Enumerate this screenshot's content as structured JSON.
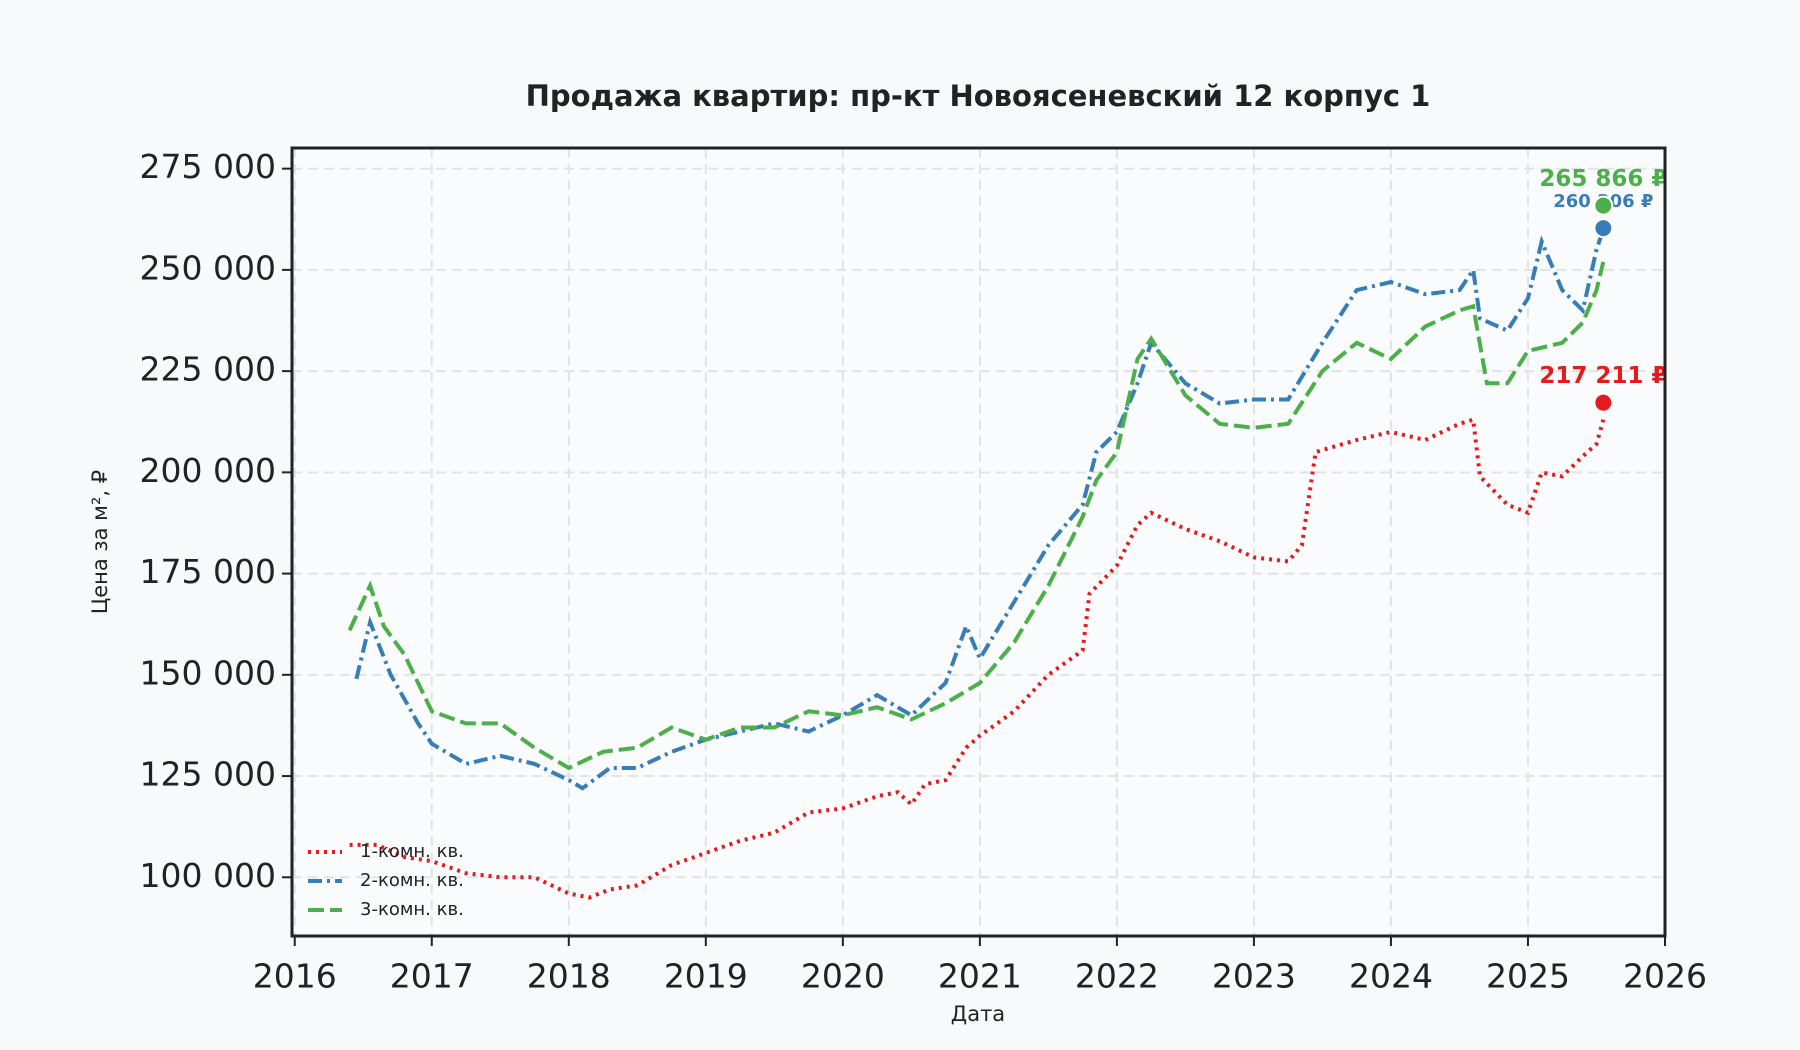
{
  "chart_data": {
    "type": "line",
    "title": "Продажа квартир: пр-кт Новоясеневский 12 корпус 1",
    "x_label": "Дата",
    "y_label": "Цена за м², ₽",
    "xlim": [
      2015.98,
      2026
    ],
    "xticks": [
      2016,
      2017,
      2018,
      2019,
      2020,
      2021,
      2022,
      2023,
      2024,
      2025,
      2026
    ],
    "ylim": [
      85500,
      280100
    ],
    "yticks": [
      {
        "value": 100000,
        "label": "100 000"
      },
      {
        "value": 125000,
        "label": "125 000"
      },
      {
        "value": 150000,
        "label": "150 000"
      },
      {
        "value": 175000,
        "label": "175 000"
      },
      {
        "value": 200000,
        "label": "200 000"
      },
      {
        "value": 225000,
        "label": "225 000"
      },
      {
        "value": 250000,
        "label": "250 000"
      },
      {
        "value": 275000,
        "label": "275 000"
      }
    ],
    "grid": true,
    "legend_position": "lower left",
    "series": [
      {
        "name": "1-комн. кв.",
        "color": "#e41a1c",
        "line_style": "dotted",
        "x": [
          2016.4,
          2016.6,
          2016.8,
          2017.0,
          2017.25,
          2017.5,
          2017.75,
          2018.0,
          2018.15,
          2018.3,
          2018.5,
          2018.75,
          2019.0,
          2019.25,
          2019.5,
          2019.75,
          2020.0,
          2020.25,
          2020.4,
          2020.5,
          2020.6,
          2020.75,
          2020.9,
          2021.0,
          2021.25,
          2021.5,
          2021.75,
          2021.8,
          2022.0,
          2022.15,
          2022.25,
          2022.5,
          2022.75,
          2023.0,
          2023.25,
          2023.35,
          2023.45,
          2023.75,
          2024.0,
          2024.25,
          2024.5,
          2024.6,
          2024.65,
          2024.85,
          2025.0,
          2025.1,
          2025.25,
          2025.4,
          2025.5,
          2025.55
        ],
        "values": [
          108000,
          108000,
          105000,
          104000,
          101000,
          100000,
          100000,
          96000,
          95000,
          97000,
          98000,
          103000,
          106000,
          109000,
          111000,
          116000,
          117000,
          120000,
          121000,
          118000,
          123000,
          124000,
          132000,
          135000,
          141000,
          150000,
          156000,
          170000,
          177000,
          187000,
          190000,
          186000,
          183000,
          179000,
          178000,
          182000,
          205000,
          208000,
          210000,
          208000,
          212000,
          213000,
          199000,
          192000,
          190000,
          200000,
          199000,
          204000,
          207000,
          213000
        ],
        "last_value": 217211,
        "last_label": "217 211 ₽"
      },
      {
        "name": "2-комн. кв.",
        "color": "#377eb8",
        "line_style": "dashdot",
        "x": [
          2016.45,
          2016.55,
          2016.7,
          2016.9,
          2017.0,
          2017.25,
          2017.5,
          2017.75,
          2018.0,
          2018.1,
          2018.3,
          2018.5,
          2018.75,
          2019.0,
          2019.25,
          2019.5,
          2019.75,
          2020.0,
          2020.25,
          2020.5,
          2020.75,
          2020.9,
          2021.0,
          2021.25,
          2021.5,
          2021.75,
          2021.85,
          2022.0,
          2022.15,
          2022.25,
          2022.5,
          2022.75,
          2023.0,
          2023.25,
          2023.5,
          2023.75,
          2024.0,
          2024.25,
          2024.5,
          2024.6,
          2024.65,
          2024.85,
          2025.0,
          2025.1,
          2025.25,
          2025.4,
          2025.5,
          2025.55
        ],
        "values": [
          149000,
          163000,
          150000,
          138000,
          133000,
          128000,
          130000,
          128000,
          124000,
          122000,
          127000,
          127000,
          131000,
          134000,
          136000,
          138000,
          136000,
          140000,
          145000,
          140000,
          148000,
          162000,
          154000,
          168000,
          182000,
          192000,
          205000,
          210000,
          222000,
          232000,
          222000,
          217000,
          218000,
          218000,
          232000,
          245000,
          247000,
          244000,
          245000,
          250000,
          238000,
          235000,
          243000,
          257000,
          245000,
          240000,
          255000,
          260000
        ],
        "last_value": 260306,
        "last_label": "260 306 ₽"
      },
      {
        "name": "3-комн. кв.",
        "color": "#4daf4a",
        "line_style": "dashed",
        "x": [
          2016.4,
          2016.55,
          2016.65,
          2016.8,
          2017.0,
          2017.25,
          2017.5,
          2017.75,
          2018.0,
          2018.25,
          2018.5,
          2018.75,
          2019.0,
          2019.25,
          2019.5,
          2019.75,
          2020.0,
          2020.25,
          2020.5,
          2020.75,
          2021.0,
          2021.25,
          2021.5,
          2021.75,
          2021.85,
          2022.0,
          2022.15,
          2022.25,
          2022.5,
          2022.75,
          2023.0,
          2023.25,
          2023.5,
          2023.75,
          2024.0,
          2024.25,
          2024.5,
          2024.6,
          2024.7,
          2024.85,
          2025.0,
          2025.25,
          2025.4,
          2025.5,
          2025.55
        ],
        "values": [
          161000,
          172000,
          162000,
          155000,
          141000,
          138000,
          138000,
          132000,
          127000,
          131000,
          132000,
          137000,
          134000,
          137000,
          137000,
          141000,
          140000,
          142000,
          139000,
          143000,
          148000,
          158000,
          172000,
          189000,
          198000,
          205000,
          228000,
          233000,
          219000,
          212000,
          211000,
          212000,
          225000,
          232000,
          228000,
          236000,
          240000,
          241000,
          222000,
          222000,
          230000,
          232000,
          237000,
          245000,
          252000
        ],
        "last_value": 265866,
        "last_label": "265 866 ₽"
      }
    ]
  }
}
